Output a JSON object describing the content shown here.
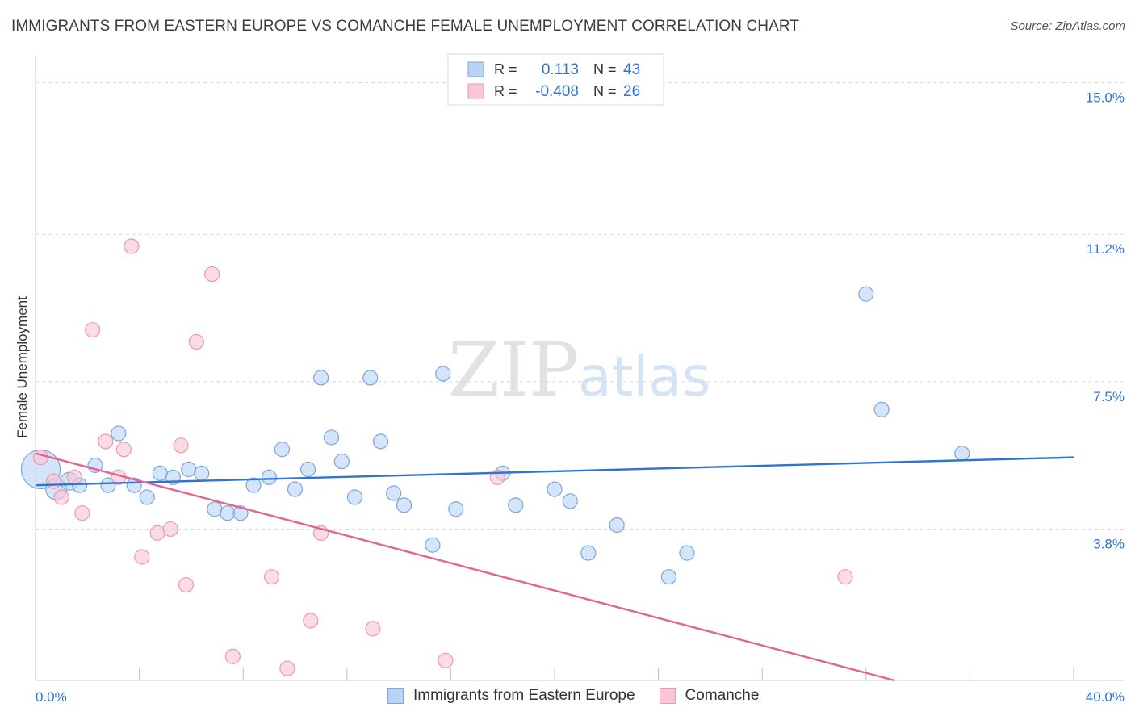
{
  "chart_data": {
    "type": "scatter",
    "title": "IMMIGRANTS FROM EASTERN EUROPE VS COMANCHE FEMALE UNEMPLOYMENT CORRELATION CHART",
    "source": "Source: ZipAtlas.com",
    "watermark": {
      "zip": "ZIP",
      "atlas": "atlas"
    },
    "ylabel": "Female Unemployment",
    "xlim": [
      0,
      40
    ],
    "ylim": [
      0,
      15.5
    ],
    "x_tick_labels": [
      "0.0%",
      "40.0%"
    ],
    "y_ticks": [
      3.8,
      7.5,
      11.2,
      15.0
    ],
    "y_tick_labels": [
      "3.8%",
      "7.5%",
      "11.2%",
      "15.0%"
    ],
    "colors": {
      "blue_fill": "#b9d3f5",
      "blue_stroke": "#7aa7e0",
      "blue_line": "#2f74cf",
      "pink_fill": "#f8c6d4",
      "pink_stroke": "#ee97b0",
      "pink_line": "#e3648f",
      "value_text": "#2f74cf",
      "grid": "#d8d8d8"
    },
    "legend_stats": [
      {
        "r_label": "R =",
        "r_value": "0.113",
        "n_label": "N =",
        "n_value": "43"
      },
      {
        "r_label": "R =",
        "r_value": "-0.408",
        "n_label": "N =",
        "n_value": "26"
      }
    ],
    "legend": [
      "Immigrants from Eastern Europe",
      "Comanche"
    ],
    "series": [
      {
        "name": "Immigrants from Eastern Europe",
        "trend": {
          "x0": 0,
          "y0": 4.9,
          "x1": 40,
          "y1": 5.6
        },
        "points": [
          [
            0.2,
            5.3
          ],
          [
            0.8,
            4.8
          ],
          [
            1.3,
            5.0
          ],
          [
            1.7,
            4.9
          ],
          [
            2.3,
            5.4
          ],
          [
            2.8,
            4.9
          ],
          [
            3.2,
            6.2
          ],
          [
            3.8,
            4.9
          ],
          [
            4.3,
            4.6
          ],
          [
            4.8,
            5.2
          ],
          [
            5.3,
            5.1
          ],
          [
            5.9,
            5.3
          ],
          [
            6.4,
            5.2
          ],
          [
            6.9,
            4.3
          ],
          [
            7.4,
            4.2
          ],
          [
            7.9,
            4.2
          ],
          [
            8.4,
            4.9
          ],
          [
            9.0,
            5.1
          ],
          [
            9.5,
            5.8
          ],
          [
            10.0,
            4.8
          ],
          [
            10.5,
            5.3
          ],
          [
            11.0,
            7.6
          ],
          [
            11.4,
            6.1
          ],
          [
            11.8,
            5.5
          ],
          [
            12.3,
            4.6
          ],
          [
            12.9,
            7.6
          ],
          [
            13.3,
            6.0
          ],
          [
            13.8,
            4.7
          ],
          [
            14.2,
            4.4
          ],
          [
            15.3,
            3.4
          ],
          [
            15.7,
            7.7
          ],
          [
            16.2,
            4.3
          ],
          [
            18.0,
            5.2
          ],
          [
            18.5,
            4.4
          ],
          [
            20.0,
            4.8
          ],
          [
            20.6,
            4.5
          ],
          [
            21.3,
            3.2
          ],
          [
            22.4,
            3.9
          ],
          [
            24.4,
            2.6
          ],
          [
            25.1,
            3.2
          ],
          [
            32.0,
            9.7
          ],
          [
            32.6,
            6.8
          ],
          [
            35.7,
            5.7
          ]
        ],
        "sizes": [
          24,
          13,
          11,
          9,
          9,
          9,
          9,
          9,
          9,
          9,
          9,
          9,
          9,
          9,
          9,
          9,
          9,
          9,
          9,
          9,
          9,
          9,
          9,
          9,
          9,
          9,
          9,
          9,
          9,
          9,
          9,
          9,
          9,
          9,
          9,
          9,
          9,
          9,
          9,
          9,
          9,
          9,
          9
        ]
      },
      {
        "name": "Comanche",
        "trend": {
          "x0": 0,
          "y0": 5.7,
          "x1": 33.1,
          "y1": 0
        },
        "points": [
          [
            0.2,
            5.6
          ],
          [
            0.7,
            5.0
          ],
          [
            1.0,
            4.6
          ],
          [
            1.5,
            5.1
          ],
          [
            1.8,
            4.2
          ],
          [
            2.2,
            8.8
          ],
          [
            2.7,
            6.0
          ],
          [
            3.2,
            5.1
          ],
          [
            3.4,
            5.8
          ],
          [
            3.7,
            10.9
          ],
          [
            4.1,
            3.1
          ],
          [
            4.7,
            3.7
          ],
          [
            5.2,
            3.8
          ],
          [
            5.6,
            5.9
          ],
          [
            5.8,
            2.4
          ],
          [
            6.2,
            8.5
          ],
          [
            6.8,
            10.2
          ],
          [
            7.6,
            0.6
          ],
          [
            9.1,
            2.6
          ],
          [
            9.7,
            0.3
          ],
          [
            10.6,
            1.5
          ],
          [
            11.0,
            3.7
          ],
          [
            13.0,
            1.3
          ],
          [
            15.8,
            0.5
          ],
          [
            17.8,
            5.1
          ],
          [
            31.2,
            2.6
          ]
        ],
        "sizes": [
          9,
          9,
          9,
          9,
          9,
          9,
          9,
          9,
          9,
          9,
          9,
          9,
          9,
          9,
          9,
          9,
          9,
          9,
          9,
          9,
          9,
          9,
          9,
          9,
          9,
          9
        ]
      }
    ]
  }
}
